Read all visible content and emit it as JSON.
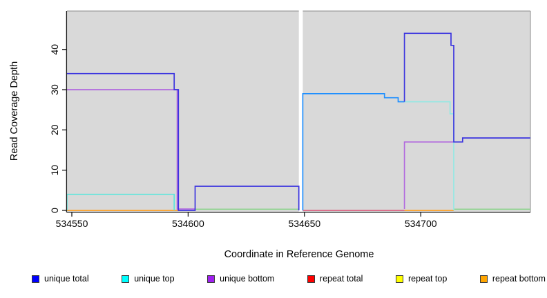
{
  "figure": {
    "background": "#FFFFFF",
    "axis_color": "#1A1A1A",
    "box_border_color": "#9E9E9E"
  },
  "chart_data": {
    "type": "line",
    "step": true,
    "title": "",
    "xlabel": "Coordinate in Reference Genome",
    "ylabel": "Read Coverage Depth",
    "xlim": [
      534547.9,
      534747.1
    ],
    "ylim": [
      0,
      49.5
    ],
    "grid": false,
    "plot_background": "#D9D9D9",
    "x_ticks": [
      534550,
      534600,
      534650,
      534700
    ],
    "x_tick_labels": [
      "534550",
      "534600",
      "534650",
      "534700"
    ],
    "y_ticks": [
      0,
      10,
      20,
      30,
      40
    ],
    "y_tick_labels": [
      "0",
      "10",
      "20",
      "30",
      "40"
    ],
    "gap_region": {
      "from": 534647.6,
      "to": 534649.3,
      "color": "#FFFFFF"
    },
    "legend_position": "bottom",
    "legend": [
      {
        "label": "unique total",
        "color": "#0000FF"
      },
      {
        "label": "unique top",
        "color": "#00FFFF"
      },
      {
        "label": "unique bottom",
        "color": "#A020F0"
      },
      {
        "label": "repeat total",
        "color": "#FF0000"
      },
      {
        "label": "repeat top",
        "color": "#FFFF00"
      },
      {
        "label": "repeat bottom",
        "color": "#FFA500"
      }
    ],
    "series": [
      {
        "name": "repeat bottom",
        "legend_color": "#FFA500",
        "segments": [
          {
            "render_color": "#FFA125",
            "points": [
              [
                534547.9,
                0
              ],
              [
                534595.8,
                0
              ]
            ]
          },
          {
            "render_color": "#FFA125",
            "points": [
              [
                534693,
                0
              ],
              [
                534714.2,
                0
              ]
            ]
          }
        ]
      },
      {
        "name": "repeat top",
        "legend_color": "#FFFF00",
        "segments": [
          {
            "render_color": "#8FD38F",
            "points": [
              [
                534603,
                0.3
              ],
              [
                534647.6,
                0.3
              ]
            ]
          },
          {
            "render_color": "#8FD38F",
            "points": [
              [
                534714.2,
                0.3
              ],
              [
                534747.1,
                0.3
              ]
            ]
          }
        ]
      },
      {
        "name": "repeat total",
        "legend_color": "#FF0000",
        "segments": [
          {
            "render_color": "#DB6080",
            "points": [
              [
                534649.3,
                0
              ],
              [
                534693,
                0
              ]
            ]
          }
        ]
      },
      {
        "name": "unique bottom",
        "legend_color": "#A020F0",
        "segments": [
          {
            "render_color": "#B168DE",
            "points": [
              [
                534547.9,
                30
              ],
              [
                534595.3,
                30
              ],
              [
                534595.3,
                0.35
              ],
              [
                534603,
                0.35
              ]
            ]
          },
          {
            "render_color": "#B168DE",
            "points": [
              [
                534693,
                0.35
              ],
              [
                534693,
                17
              ],
              [
                534714.2,
                17
              ]
            ]
          }
        ]
      },
      {
        "name": "unique top",
        "legend_color": "#00FFFF",
        "segments": [
          {
            "render_color": "#5CE6DC",
            "points": [
              [
                534547.9,
                0
              ],
              [
                534547.9,
                4
              ],
              [
                534594,
                4
              ],
              [
                534594,
                0
              ]
            ]
          },
          {
            "render_color": "#93E9E3",
            "points": [
              [
                534693,
                27
              ],
              [
                534712.6,
                27
              ],
              [
                534712.6,
                24
              ],
              [
                534714.2,
                24
              ],
              [
                534714.2,
                0
              ]
            ]
          }
        ]
      },
      {
        "name": "unique total",
        "legend_color": "#0000FF",
        "segments": [
          {
            "render_color": "#3B34DF",
            "points": [
              [
                534547.9,
                34
              ],
              [
                534594,
                34
              ],
              [
                534594,
                30
              ],
              [
                534595.8,
                30
              ],
              [
                534595.8,
                0
              ],
              [
                534603,
                0
              ],
              [
                534603,
                6
              ],
              [
                534647.6,
                6
              ],
              [
                534647.6,
                0
              ]
            ]
          },
          {
            "render_color": "#1E8FFF",
            "points": [
              [
                534649.3,
                0
              ],
              [
                534649.3,
                29
              ],
              [
                534684.4,
                29
              ],
              [
                534684.4,
                28
              ],
              [
                534690.3,
                28
              ],
              [
                534690.3,
                27
              ],
              [
                534693,
                27
              ]
            ]
          },
          {
            "render_color": "#3B34DF",
            "points": [
              [
                534693,
                27
              ],
              [
                534693,
                44
              ],
              [
                534713,
                44
              ],
              [
                534713,
                41
              ],
              [
                534714.2,
                41
              ],
              [
                534714.2,
                17
              ],
              [
                534718,
                17
              ],
              [
                534718,
                18
              ],
              [
                534747.1,
                18
              ]
            ]
          }
        ]
      }
    ]
  }
}
